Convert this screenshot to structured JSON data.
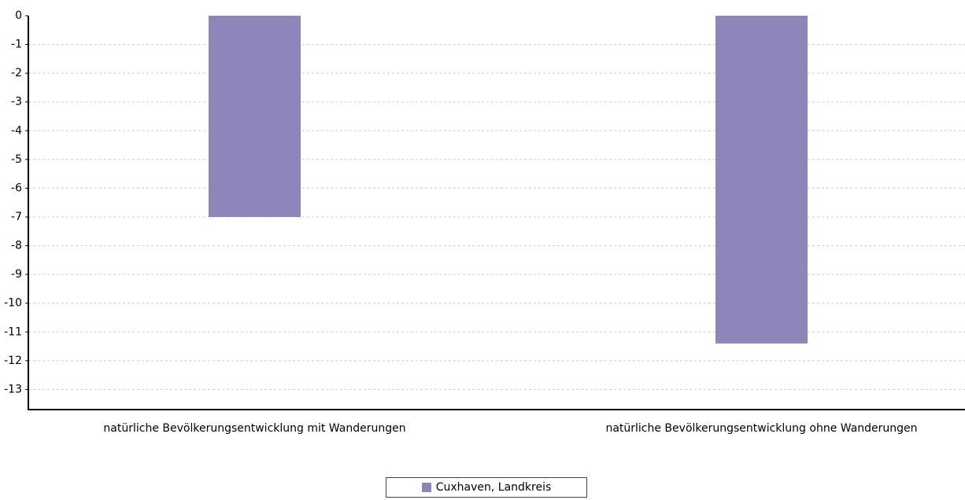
{
  "chart_data": {
    "type": "bar",
    "categories": [
      "natürliche Bevölkerungsentwicklung mit Wanderungen",
      "natürliche Bevölkerungsentwicklung ohne Wanderungen"
    ],
    "series": [
      {
        "name": "Cuxhaven, Landkreis",
        "color": "#9085bb",
        "values": [
          -7,
          -11.4
        ]
      }
    ],
    "ylim": [
      -13.7,
      0
    ],
    "yticks": [
      0,
      -1,
      -2,
      -3,
      -4,
      -5,
      -6,
      -7,
      -8,
      -9,
      -10,
      -11,
      -12,
      -13
    ],
    "grid": true
  }
}
